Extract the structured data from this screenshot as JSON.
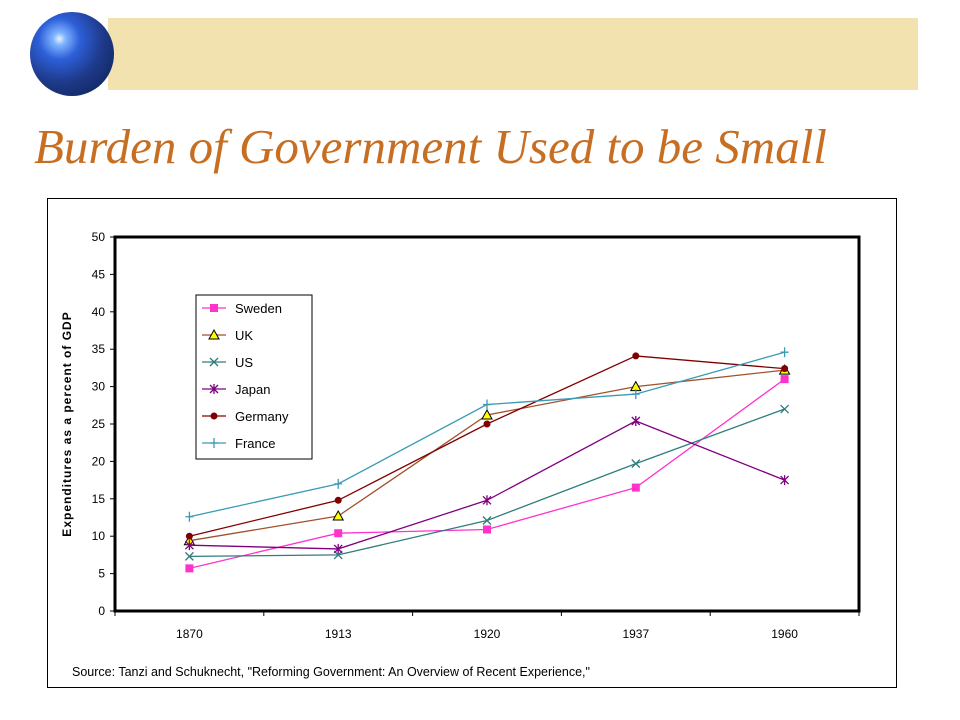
{
  "slide": {
    "title": "Burden of Government Used to be Small"
  },
  "chart_data": {
    "type": "line",
    "title": "",
    "xlabel": "",
    "ylabel": "Expenditures as a percent of GDP",
    "categories": [
      "1870",
      "1913",
      "1920",
      "1937",
      "1960"
    ],
    "ylim": [
      0,
      50
    ],
    "yticks": [
      0,
      5,
      10,
      15,
      20,
      25,
      30,
      35,
      40,
      45,
      50
    ],
    "grid": false,
    "legend_position": "top-left",
    "source": "Source: Tanzi and Schuknecht, \"Reforming Government: An Overview of Recent Experience,\"",
    "series": [
      {
        "name": "Sweden",
        "color": "#ff33cc",
        "marker": "square",
        "values": [
          5.7,
          10.4,
          10.9,
          16.5,
          31.0
        ]
      },
      {
        "name": "UK",
        "color": "#a0522d",
        "marker": "triangle",
        "values": [
          9.4,
          12.7,
          26.2,
          30.0,
          32.2
        ]
      },
      {
        "name": "US",
        "color": "#2e7d7d",
        "marker": "x",
        "values": [
          7.3,
          7.5,
          12.1,
          19.7,
          27.0
        ]
      },
      {
        "name": "Japan",
        "color": "#800080",
        "marker": "star",
        "values": [
          8.8,
          8.3,
          14.8,
          25.4,
          17.5
        ]
      },
      {
        "name": "Germany",
        "color": "#800000",
        "marker": "circle",
        "values": [
          10.0,
          14.8,
          25.0,
          34.1,
          32.4
        ]
      },
      {
        "name": "France",
        "color": "#3a9bb5",
        "marker": "plus",
        "values": [
          12.6,
          17.0,
          27.6,
          29.0,
          34.6
        ]
      }
    ]
  }
}
